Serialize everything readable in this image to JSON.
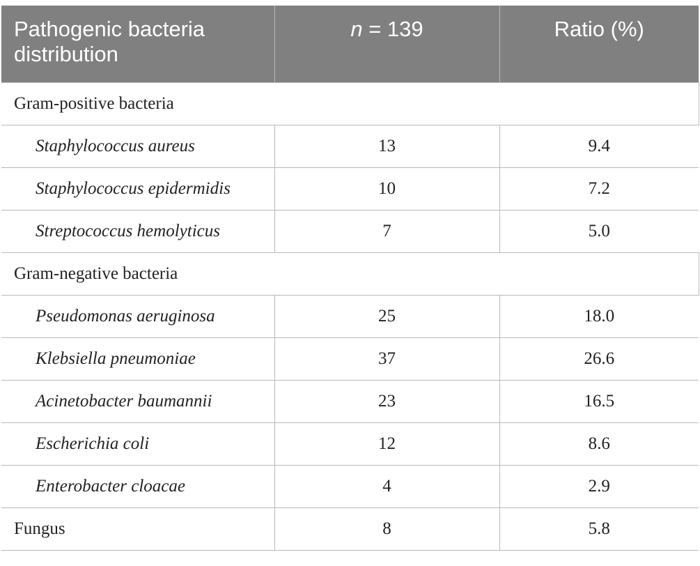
{
  "header": {
    "col1": "Pathogenic bacteria distribution",
    "col1_line1": "Pathogenic bacteria",
    "col1_line2": "distribution",
    "col2_var": "n",
    "col2_rest": " = 139",
    "col3": "Ratio (%)"
  },
  "groups": {
    "gram_positive": "Gram-positive bacteria",
    "gram_negative": "Gram-negative bacteria"
  },
  "rows": {
    "s_aureus": {
      "name": "Staphylococcus aureus",
      "n": "13",
      "ratio": "9.4"
    },
    "s_epidermidis": {
      "name": "Staphylococcus epidermidis",
      "n": "10",
      "ratio": "7.2"
    },
    "s_hemolyticus": {
      "name": "Streptococcus hemolyticus",
      "n": "7",
      "ratio": "5.0"
    },
    "p_aeruginosa": {
      "name": "Pseudomonas aeruginosa",
      "n": "25",
      "ratio": "18.0"
    },
    "k_pneumoniae": {
      "name": "Klebsiella pneumoniae",
      "n": "37",
      "ratio": "26.6"
    },
    "a_baumannii": {
      "name": "Acinetobacter baumannii",
      "n": "23",
      "ratio": "16.5"
    },
    "e_coli": {
      "name": "Escherichia coli",
      "n": "12",
      "ratio": "8.6"
    },
    "e_cloacae": {
      "name": "Enterobacter cloacae",
      "n": "4",
      "ratio": "2.9"
    },
    "fungus": {
      "name": "Fungus",
      "n": "8",
      "ratio": "5.8"
    }
  },
  "colors": {
    "header_bg": "#808080",
    "header_text": "#ffffff",
    "grid_line": "#b9b9b9",
    "body_text": "#222222"
  }
}
